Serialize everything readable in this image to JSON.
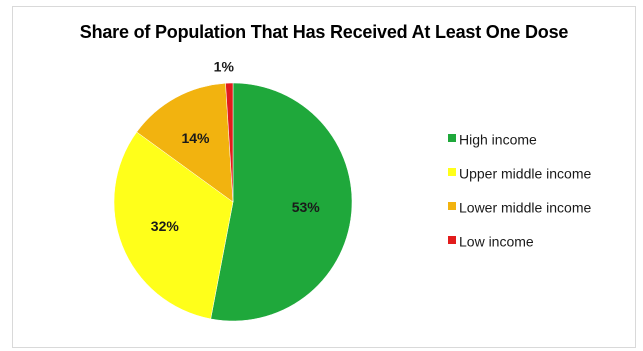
{
  "chart_data": {
    "type": "pie",
    "title": "Share of Population That Has Received At Least One Dose",
    "categories": [
      "High income",
      "Upper middle income",
      "Lower middle income",
      "Low income"
    ],
    "values": [
      53,
      32,
      14,
      1
    ],
    "value_labels": [
      "53%",
      "32%",
      "14%",
      "1%"
    ],
    "colors": [
      "#1fa83b",
      "#ffff1a",
      "#f2b30f",
      "#e21c1c"
    ],
    "start_angle_deg": 0,
    "direction": "clockwise",
    "legend_position": "right"
  }
}
